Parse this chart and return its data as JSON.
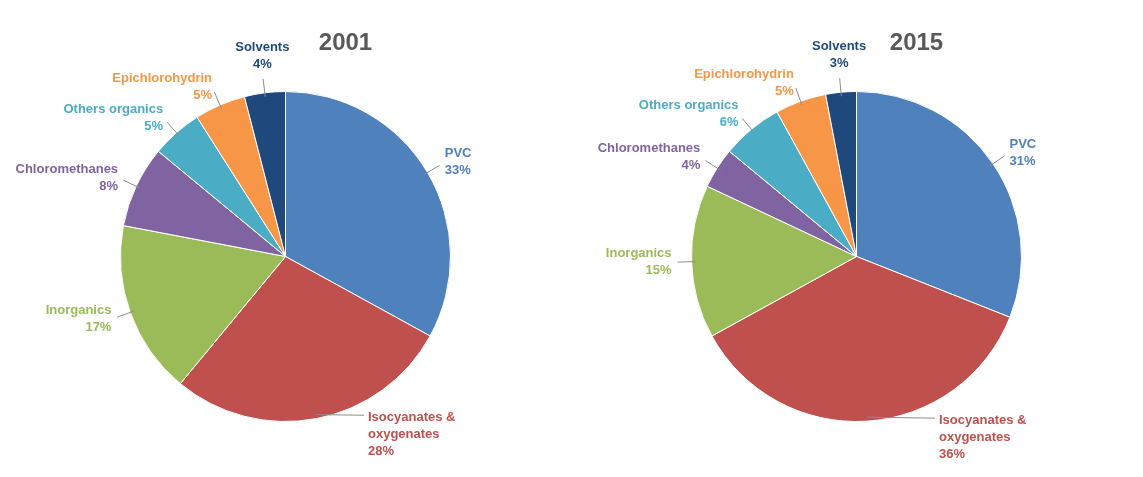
{
  "chart_data": [
    {
      "type": "pie",
      "title": "2001",
      "categories": [
        "PVC",
        "Isocyanates & oxygenates",
        "Inorganics",
        "Chloromethanes",
        "Others organics",
        "Epichlorohydrin",
        "Solvents"
      ],
      "values": [
        33,
        28,
        17,
        8,
        5,
        5,
        4
      ],
      "value_labels": [
        "33%",
        "28%",
        "17%",
        "8%",
        "5%",
        "5%",
        "4%"
      ],
      "colors": [
        "#4f81bd",
        "#c0504d",
        "#9bbb59",
        "#8064a2",
        "#4bacc6",
        "#f79646",
        "#1f497d"
      ]
    },
    {
      "type": "pie",
      "title": "2015",
      "categories": [
        "PVC",
        "Isocyanates & oxygenates",
        "Inorganics",
        "Chloromethanes",
        "Others organics",
        "Epichlorohydrin",
        "Solvents"
      ],
      "values": [
        31,
        36,
        15,
        4,
        6,
        5,
        3
      ],
      "value_labels": [
        "31%",
        "36%",
        "15%",
        "4%",
        "6%",
        "5%",
        "3%"
      ],
      "colors": [
        "#4f81bd",
        "#c0504d",
        "#9bbb59",
        "#8064a2",
        "#4bacc6",
        "#f79646",
        "#1f497d"
      ]
    }
  ]
}
